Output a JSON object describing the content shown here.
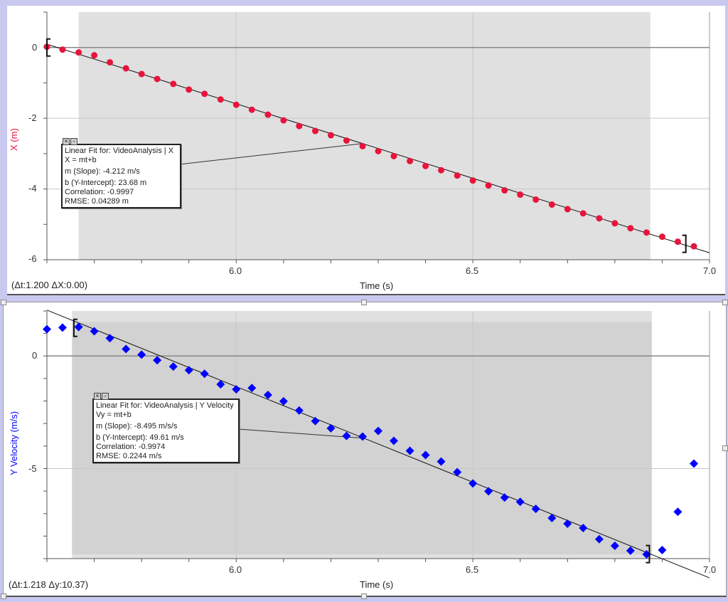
{
  "colors": {
    "x_series": "#e8143c",
    "vy_series": "#0000ff",
    "selection_light": "#e0e0e0",
    "selection_dark": "#d2d2d2",
    "frame": "#c9c9ef"
  },
  "chart_data": [
    {
      "type": "scatter",
      "xlabel": "Time (s)",
      "ylabel": "X (m)",
      "xlim": [
        5.6,
        7.0
      ],
      "ylim": [
        -6,
        1
      ],
      "x_ticks": [
        "6.0",
        "6.5",
        "7.0"
      ],
      "y_ticks": [
        "0",
        "-2",
        "-4",
        "-6"
      ],
      "grid": true,
      "marker": "circle",
      "series": [
        {
          "t": [
            5.6,
            5.633,
            5.667,
            5.7,
            5.733,
            5.767,
            5.8,
            5.833,
            5.867,
            5.9,
            5.933,
            5.967,
            6.0,
            6.033,
            6.067,
            6.1,
            6.133,
            6.167,
            6.2,
            6.233,
            6.267,
            6.3,
            6.333,
            6.367,
            6.4,
            6.433,
            6.467,
            6.5,
            6.533,
            6.567,
            6.6,
            6.633,
            6.667,
            6.7,
            6.733,
            6.767,
            6.8,
            6.833,
            6.867,
            6.9,
            6.933,
            6.967
          ],
          "values": [
            0.02,
            -0.06,
            -0.14,
            -0.22,
            -0.42,
            -0.59,
            -0.75,
            -0.89,
            -1.03,
            -1.19,
            -1.31,
            -1.47,
            -1.62,
            -1.76,
            -1.9,
            -2.06,
            -2.22,
            -2.36,
            -2.48,
            -2.63,
            -2.79,
            -2.93,
            -3.07,
            -3.21,
            -3.35,
            -3.47,
            -3.62,
            -3.76,
            -3.9,
            -4.04,
            -4.16,
            -4.3,
            -4.44,
            -4.57,
            -4.69,
            -4.83,
            -4.97,
            -5.11,
            -5.23,
            -5.35,
            -5.49,
            -5.62
          ]
        }
      ],
      "selection": {
        "t_start": 5.667,
        "t_end": 6.875
      },
      "brackets": [
        {
          "t": 5.6,
          "value": 0.0,
          "side": "left"
        },
        {
          "t": 6.95,
          "value": -5.55,
          "side": "right"
        }
      ],
      "fit": {
        "slope": -4.212,
        "intercept": 23.68,
        "anchor_t": 6.267
      },
      "delta_readout": "(Δt:1.200 ΔX:0.00)",
      "fit_box": {
        "title": "Linear Fit for: VideoAnalysis | X",
        "equation": "X = mt+b",
        "slope": "m (Slope): -4.212 m/s",
        "intercept": "b (Y-Intercept): 23.68 m",
        "correlation": "Correlation: -0.9997",
        "rmse": "RMSE: 0.04289 m"
      }
    },
    {
      "type": "scatter",
      "xlabel": "Time (s)",
      "ylabel": "Y Velocity (m/s)",
      "xlim": [
        5.6,
        7.0
      ],
      "ylim": [
        -9,
        2
      ],
      "x_ticks": [
        "6.0",
        "6.5",
        "7.0"
      ],
      "y_ticks": [
        "0",
        "-5"
      ],
      "grid": true,
      "marker": "diamond",
      "series": [
        {
          "t": [
            5.6,
            5.633,
            5.667,
            5.7,
            5.733,
            5.767,
            5.8,
            5.833,
            5.867,
            5.9,
            5.933,
            5.967,
            6.0,
            6.033,
            6.067,
            6.1,
            6.133,
            6.167,
            6.2,
            6.233,
            6.267,
            6.3,
            6.333,
            6.367,
            6.4,
            6.433,
            6.467,
            6.5,
            6.533,
            6.567,
            6.6,
            6.633,
            6.667,
            6.7,
            6.733,
            6.767,
            6.8,
            6.833,
            6.867,
            6.9,
            6.933,
            6.967
          ],
          "values": [
            1.19,
            1.26,
            1.29,
            1.1,
            0.79,
            0.31,
            0.06,
            -0.19,
            -0.47,
            -0.63,
            -0.79,
            -1.26,
            -1.48,
            -1.42,
            -1.73,
            -2.01,
            -2.42,
            -2.89,
            -3.21,
            -3.55,
            -3.58,
            -3.33,
            -3.77,
            -4.21,
            -4.4,
            -4.69,
            -5.16,
            -5.66,
            -6.01,
            -6.29,
            -6.48,
            -6.79,
            -7.2,
            -7.45,
            -7.64,
            -8.14,
            -8.43,
            -8.65,
            -8.81,
            -8.62,
            -6.92,
            -4.78
          ]
        }
      ],
      "selection": {
        "t_start": 5.653,
        "t_end": 6.878,
        "v_top": 1.51,
        "v_bottom": -8.81
      },
      "brackets": [
        {
          "t": 5.657,
          "value": 1.25,
          "side": "left"
        },
        {
          "t": 6.873,
          "value": -8.8,
          "side": "right"
        }
      ],
      "fit": {
        "slope": -8.495,
        "intercept": 49.61,
        "anchor_t": 6.27
      },
      "delta_readout": "(Δt:1.218 Δy:10.37)",
      "fit_box": {
        "title": "Linear Fit for: VideoAnalysis | Y Velocity",
        "equation": "Vy = mt+b",
        "slope": "m (Slope): -8.495 m/s/s",
        "intercept": "b (Y-Intercept): 49.61 m/s",
        "correlation": "Correlation: -0.9974",
        "rmse": "RMSE: 0.2244 m/s"
      }
    }
  ]
}
